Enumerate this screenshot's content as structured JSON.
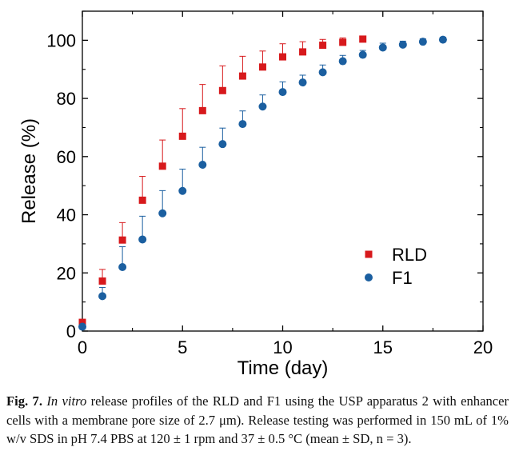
{
  "chart_data": {
    "type": "scatter",
    "xlabel": "Time (day)",
    "ylabel": "Release (%)",
    "xlim": [
      0,
      20
    ],
    "ylim": [
      0,
      110
    ],
    "x_ticks": [
      "0",
      "5",
      "10",
      "15",
      "20"
    ],
    "y_ticks": [
      "0",
      "20",
      "40",
      "60",
      "80",
      "100"
    ],
    "grid": false,
    "legend_position": "lower-right",
    "error_bars": "upper only (SD)",
    "series": [
      {
        "name": "RLD",
        "marker": "square",
        "color": "#d7191c",
        "x": [
          0,
          1,
          2,
          3,
          4,
          5,
          6,
          7,
          8,
          9,
          10,
          11,
          12,
          13,
          14
        ],
        "y": [
          3.0,
          17.2,
          31.3,
          45.0,
          56.7,
          67.0,
          75.8,
          82.7,
          87.7,
          90.8,
          94.3,
          96.0,
          98.3,
          99.3,
          100.4
        ],
        "err": [
          0.5,
          4.0,
          6.0,
          8.2,
          9.0,
          9.5,
          9.0,
          8.5,
          6.8,
          5.5,
          4.5,
          3.5,
          2.0,
          1.5,
          0.5
        ]
      },
      {
        "name": "F1",
        "marker": "circle",
        "color": "#1b5fa0",
        "x": [
          0,
          1,
          2,
          3,
          4,
          5,
          6,
          7,
          8,
          9,
          10,
          11,
          12,
          13,
          14,
          15,
          16,
          17,
          18
        ],
        "y": [
          1.5,
          12.0,
          22.0,
          31.5,
          40.5,
          48.2,
          57.2,
          64.3,
          71.2,
          77.2,
          82.2,
          85.5,
          89.0,
          92.8,
          95.0,
          97.5,
          98.5,
          99.5,
          100.2
        ],
        "err": [
          1.0,
          3.0,
          7.0,
          8.0,
          7.8,
          7.5,
          6.0,
          5.5,
          4.5,
          4.0,
          3.5,
          2.5,
          2.5,
          2.0,
          1.5,
          1.5,
          1.2,
          1.0,
          0.8
        ]
      }
    ]
  },
  "caption": {
    "label": "Fig. 7.",
    "italic": "In vitro",
    "text": " release profiles of the RLD and F1 using the USP apparatus 2 with enhancer cells with a membrane pore size of 2.7 μm). Release testing was performed in 150 mL of 1% w/v SDS in pH 7.4 PBS at 120 ± 1 rpm and 37 ± 0.5 °C (mean ± SD, n = 3)."
  }
}
